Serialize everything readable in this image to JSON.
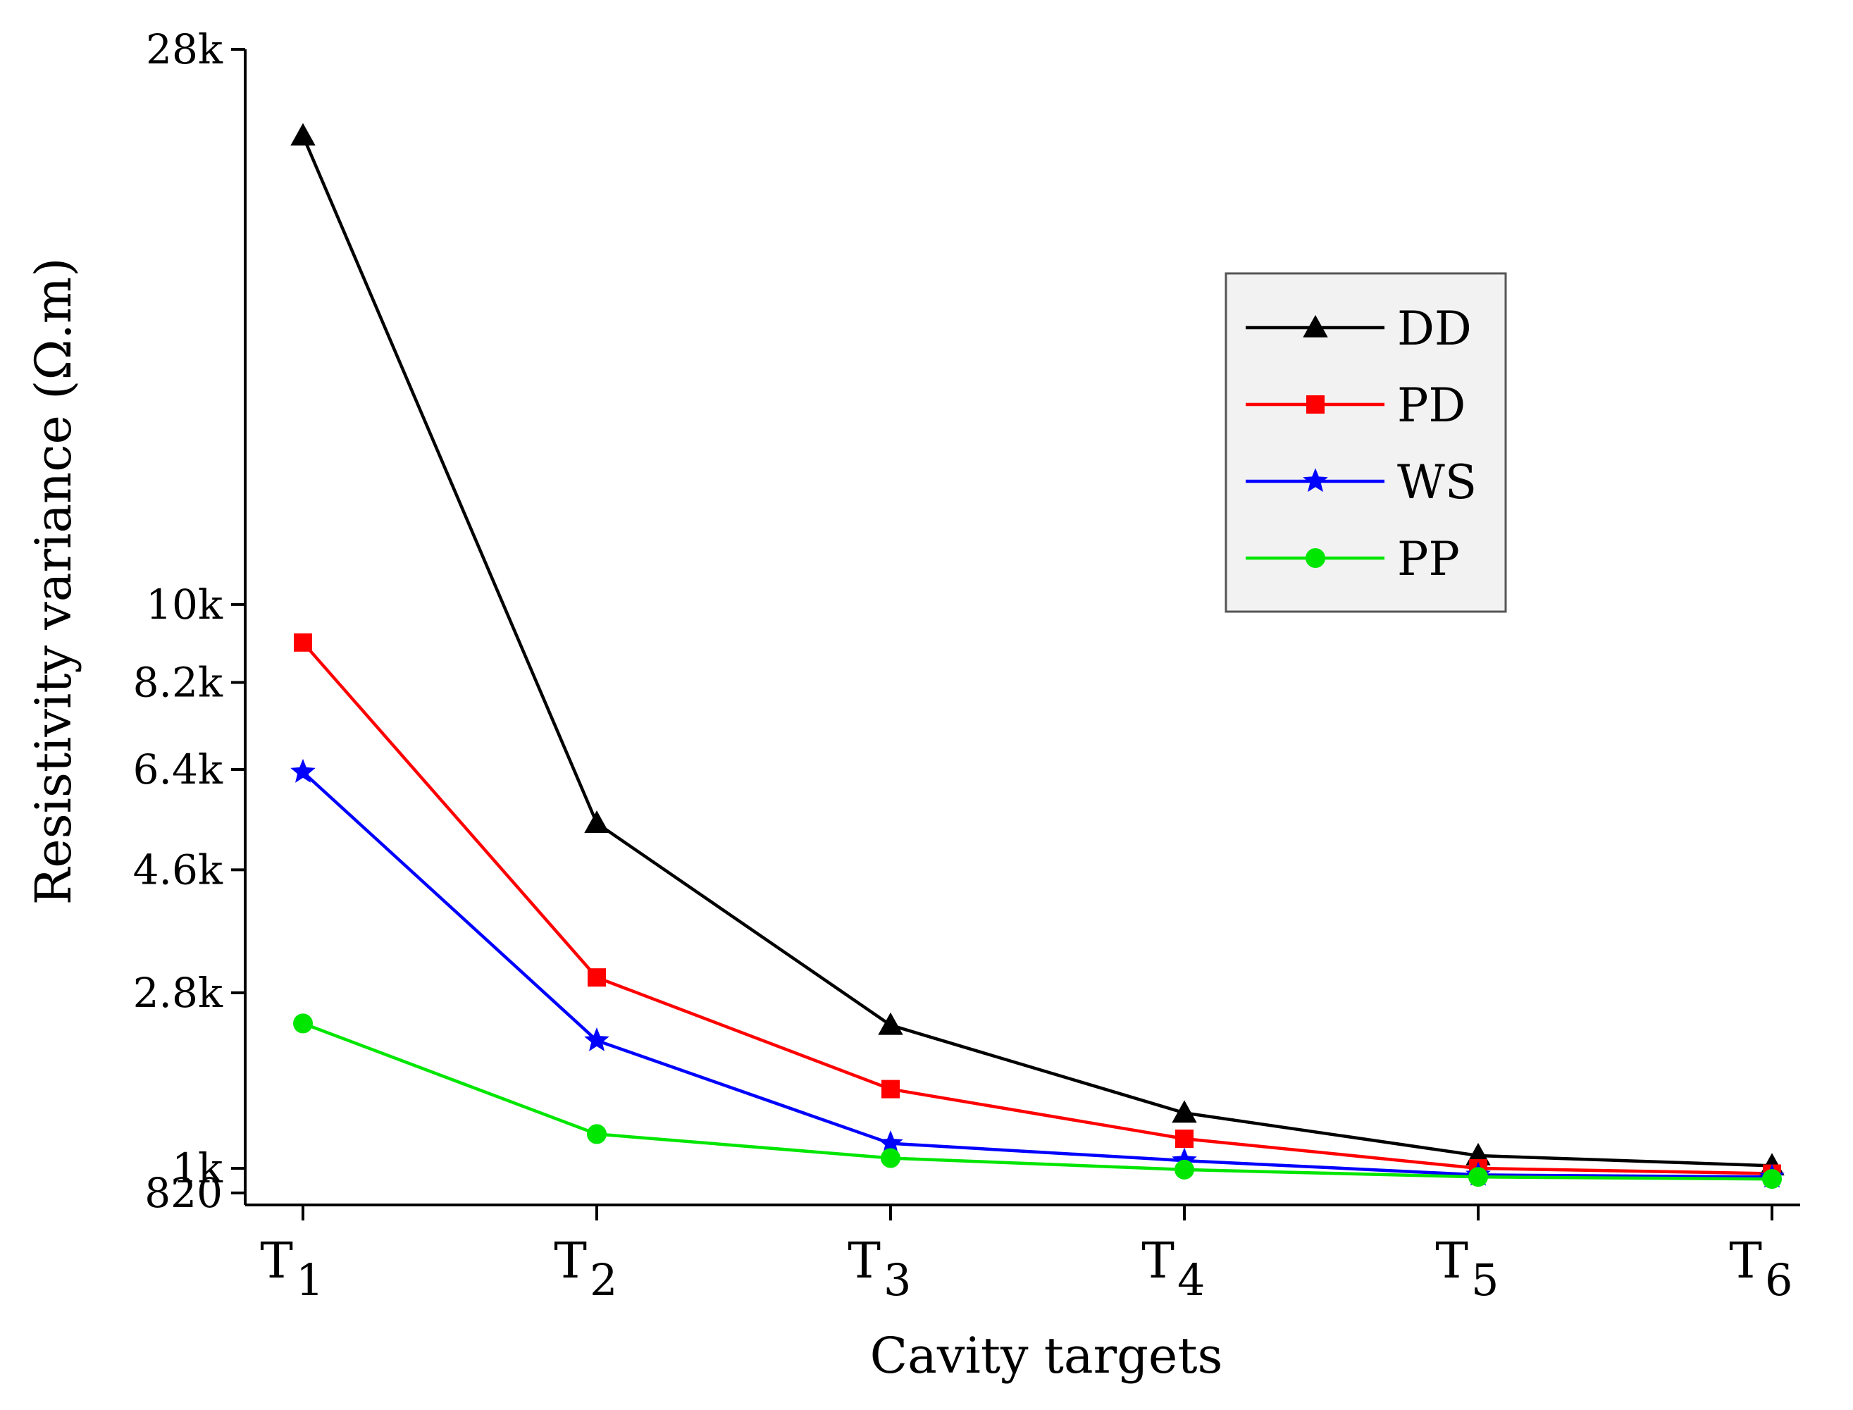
{
  "chart_data": {
    "type": "line",
    "title": "",
    "xlabel": "Cavity targets",
    "ylabel": "Resistivity variance (Ω.m)",
    "categories": [
      {
        "main": "T",
        "sub": "1"
      },
      {
        "main": "T",
        "sub": "2"
      },
      {
        "main": "T",
        "sub": "3"
      },
      {
        "main": "T",
        "sub": "4"
      },
      {
        "main": "T",
        "sub": "5"
      },
      {
        "main": "T",
        "sub": "6"
      }
    ],
    "y_scale": "sqrt",
    "ylim": [
      820,
      28000
    ],
    "yticks": [
      {
        "value": 820,
        "label": "820"
      },
      {
        "value": 1000,
        "label": "1k"
      },
      {
        "value": 2800,
        "label": "2.8k"
      },
      {
        "value": 4600,
        "label": "4.6k"
      },
      {
        "value": 6400,
        "label": "6.4k"
      },
      {
        "value": 8200,
        "label": "8.2k"
      },
      {
        "value": 10000,
        "label": "10k"
      },
      {
        "value": 28000,
        "label": "28k"
      }
    ],
    "legend_position": "top-right",
    "series": [
      {
        "name": "DD",
        "color": "#000000",
        "marker": "triangle",
        "values": [
          24600,
          5400,
          2400,
          1470,
          1100,
          1020
        ]
      },
      {
        "name": "PD",
        "color": "#ff0000",
        "marker": "square",
        "values": [
          9100,
          3000,
          1700,
          1240,
          1000,
          960
        ]
      },
      {
        "name": "WS",
        "color": "#0000ff",
        "marker": "star",
        "values": [
          6350,
          2220,
          1200,
          1060,
          950,
          935
        ]
      },
      {
        "name": "PP",
        "color": "#00e600",
        "marker": "circle",
        "values": [
          2420,
          1280,
          1080,
          990,
          935,
          920
        ]
      }
    ]
  }
}
